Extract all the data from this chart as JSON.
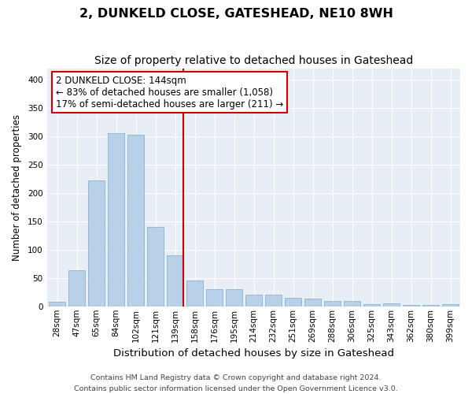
{
  "title": "2, DUNKELD CLOSE, GATESHEAD, NE10 8WH",
  "subtitle": "Size of property relative to detached houses in Gateshead",
  "xlabel": "Distribution of detached houses by size in Gateshead",
  "ylabel": "Number of detached properties",
  "bar_labels": [
    "28sqm",
    "47sqm",
    "65sqm",
    "84sqm",
    "102sqm",
    "121sqm",
    "139sqm",
    "158sqm",
    "176sqm",
    "195sqm",
    "214sqm",
    "232sqm",
    "251sqm",
    "269sqm",
    "288sqm",
    "306sqm",
    "325sqm",
    "343sqm",
    "362sqm",
    "380sqm",
    "399sqm"
  ],
  "bar_values": [
    8,
    63,
    222,
    305,
    303,
    140,
    90,
    45,
    30,
    30,
    20,
    20,
    15,
    13,
    10,
    10,
    4,
    5,
    3,
    2,
    4
  ],
  "bar_color": "#b8d0e8",
  "bar_edge_color": "#7aaac8",
  "background_color": "#e8eef6",
  "grid_color": "#ffffff",
  "vline_x_index": 6,
  "vline_color": "#cc0000",
  "annotation_text": "2 DUNKELD CLOSE: 144sqm\n← 83% of detached houses are smaller (1,058)\n17% of semi-detached houses are larger (211) →",
  "annotation_box_color": "#cc0000",
  "annotation_text_color": "#000000",
  "footer_line1": "Contains HM Land Registry data © Crown copyright and database right 2024.",
  "footer_line2": "Contains public sector information licensed under the Open Government Licence v3.0.",
  "ylim": [
    0,
    420
  ],
  "yticks": [
    0,
    50,
    100,
    150,
    200,
    250,
    300,
    350,
    400
  ],
  "title_fontsize": 11.5,
  "subtitle_fontsize": 10,
  "xlabel_fontsize": 9.5,
  "ylabel_fontsize": 8.5,
  "tick_fontsize": 7.5,
  "footer_fontsize": 6.8,
  "annotation_fontsize": 8.5
}
